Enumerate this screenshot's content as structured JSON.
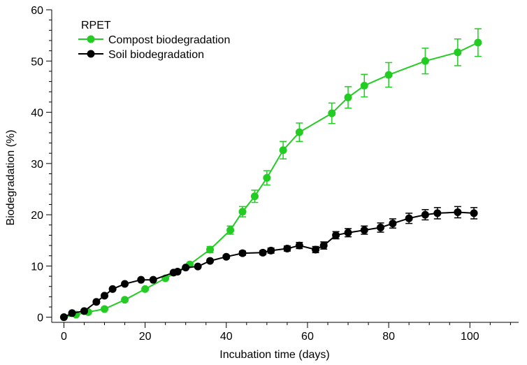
{
  "chart_data": {
    "type": "line",
    "title": "",
    "xlabel": "Incubation time (days)",
    "ylabel": "Biodegradation (%)",
    "xlim": [
      -3,
      112
    ],
    "ylim": [
      -1,
      60
    ],
    "xticks": [
      0,
      20,
      40,
      60,
      80,
      100
    ],
    "yticks": [
      0,
      10,
      20,
      30,
      40,
      50,
      60
    ],
    "grid": false,
    "legend": {
      "title": "RPET",
      "position": "top-left"
    },
    "series": [
      {
        "name": "Compost biodegradation",
        "color": "#22cc22",
        "x": [
          0,
          3,
          6,
          10,
          15,
          20,
          25,
          31,
          36,
          41,
          44,
          47,
          50,
          54,
          58,
          66,
          70,
          74,
          80,
          89,
          97,
          102
        ],
        "y": [
          0,
          0.5,
          1,
          1.6,
          3.4,
          5.5,
          7.6,
          10.3,
          13.2,
          17,
          20.6,
          23.6,
          27.2,
          32.6,
          36.1,
          39.8,
          42.9,
          45.2,
          47.3,
          50,
          51.7,
          53.6
        ],
        "err": [
          0,
          0,
          0,
          0,
          0,
          0,
          0,
          0,
          0.6,
          0.8,
          1,
          1.2,
          1.4,
          1.7,
          1.8,
          2,
          2.1,
          2.2,
          2.4,
          2.5,
          2.6,
          2.7
        ]
      },
      {
        "name": "Soil biodegradation",
        "color": "#000000",
        "x": [
          0,
          2,
          5,
          8,
          10,
          12,
          15,
          19,
          22,
          27,
          28,
          30,
          33,
          36,
          40,
          44,
          49,
          51,
          55,
          58,
          62,
          64,
          67,
          70,
          74,
          78,
          81,
          85,
          89,
          92,
          97,
          101
        ],
        "y": [
          0,
          0.8,
          1.2,
          3,
          4.2,
          5.5,
          6.5,
          7.3,
          7.3,
          8.7,
          8.9,
          9.7,
          9.9,
          11,
          11.8,
          12.5,
          12.6,
          13,
          13.4,
          14,
          13.2,
          14,
          16,
          16.5,
          17,
          17.5,
          18.3,
          19.3,
          20,
          20.3,
          20.5,
          20.3
        ],
        "err": [
          0,
          0,
          0,
          0,
          0,
          0,
          0,
          0,
          0,
          0,
          0,
          0,
          0,
          0,
          0.3,
          0.4,
          0.4,
          0.5,
          0.5,
          0.6,
          0.6,
          0.7,
          0.7,
          0.8,
          0.8,
          0.9,
          0.9,
          1,
          1,
          1.1,
          1.1,
          1.1
        ]
      }
    ]
  }
}
